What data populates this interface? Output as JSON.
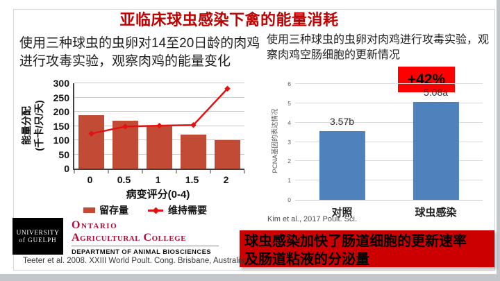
{
  "slide": {
    "title": "亚临床球虫感染下禽的能量消耗",
    "left_panel": {
      "description": "使用三种球虫的虫卵对14至20日龄的肉鸡进行攻毒实验，观察肉鸡的能量变化",
      "citation": "Teeter et al. 2008. XXIII World Poult. Cong. Brisbane, Australia"
    },
    "right_panel": {
      "description": "使用三种球虫的虫卵对肉鸡进行攻毒实验，观察肉鸡空肠细胞的更新情况",
      "citation": "Kim et al., 2017 Poult. Sci.",
      "conclusion": "球虫感染加快了肠道细胞的更新速率\n及肠道粘液的分泌量"
    },
    "logos": {
      "university": {
        "line1": "UNIVERSITY",
        "line2": "of GUELPH"
      },
      "college": {
        "line1": "Ontario",
        "line2": "Agricultural College",
        "department": "DEPARTMENT OF ANIMAL BIOSCIENCES"
      }
    }
  },
  "colors": {
    "title_red": "#C00000",
    "banner_red": "#CC0000",
    "badge_red": "#FF0000",
    "bar_red": "#C14B35",
    "line_red": "#E21212",
    "bar_blue": "#4F81BD",
    "college_red": "#AE0E36"
  },
  "chart_data": [
    {
      "type": "bar",
      "title": "",
      "categories": [
        "0",
        "0.5",
        "1",
        "1.5",
        "2"
      ],
      "series": [
        {
          "name": "留存量",
          "type": "bar",
          "color": "#C14B35",
          "values": [
            187,
            168,
            150,
            120,
            100
          ]
        },
        {
          "name": "维持需要",
          "type": "line",
          "color": "#E21212",
          "values": [
            123,
            148,
            151,
            153,
            281
          ]
        }
      ],
      "xlabel": "病变评分(0-4)",
      "ylabel": "能量分配\n(千卡/只/天)",
      "ylim": [
        0,
        300
      ],
      "ytick": 50,
      "grid": true,
      "legend_position": "bottom"
    },
    {
      "type": "bar",
      "title": "",
      "categories": [
        "对照",
        "球虫感染"
      ],
      "values": [
        3.57,
        5.08
      ],
      "bar_labels": [
        "3.57b",
        "5.08a"
      ],
      "color": "#4F81BD",
      "xlabel": "",
      "ylabel": "PCNA基因的表达情况",
      "ylim": [
        0,
        6
      ],
      "ytick": 1,
      "grid": true,
      "annotation": {
        "text": "+42%",
        "bg": "#FF0000"
      }
    }
  ]
}
